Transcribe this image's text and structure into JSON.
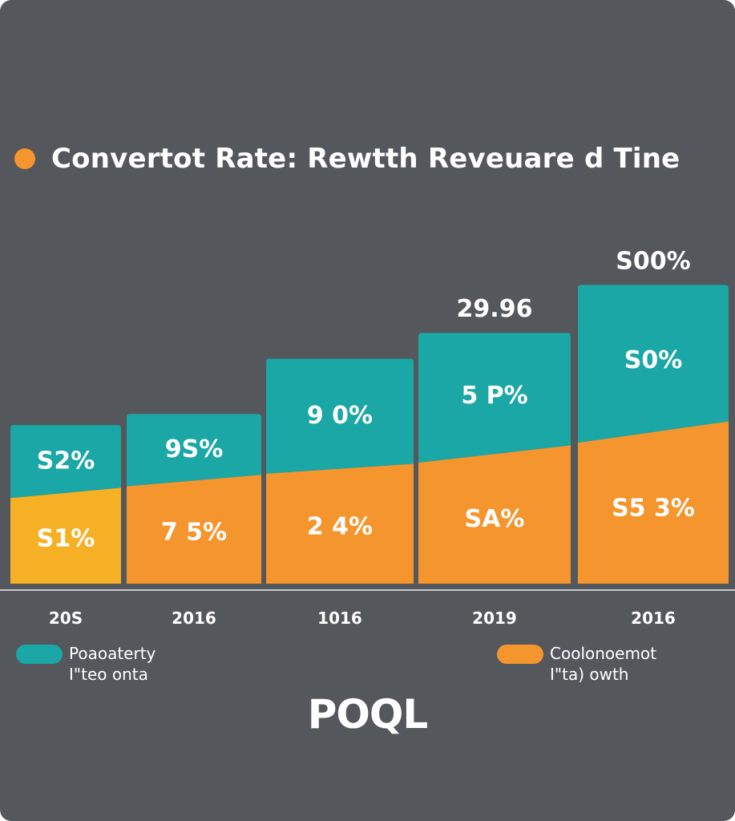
{
  "title": "Convertot Rate: Rewtth Reveuare d Tine",
  "logo": "POQL",
  "colors": {
    "background": "#54575c",
    "teal": "#1aa7a5",
    "orange": "#f5952e",
    "yellow": "#f6b025",
    "text": "#ffffff",
    "baseline": "#c8cacd"
  },
  "legend": [
    {
      "label": "Poaoaterty\nI\"teo onta",
      "color": "#1aa7a5"
    },
    {
      "label": "Coolonoemot\nI\"ta) owth",
      "color": "#f5952e"
    }
  ],
  "chart_data": {
    "type": "bar",
    "stacked": true,
    "categories": [
      "20S",
      "2016",
      "1016",
      "2019",
      "2016"
    ],
    "series": [
      {
        "name": "Poaoaterty I\"teo onta",
        "color": "#1aa7a5",
        "values": [
          19,
          18,
          30,
          34,
          40
        ],
        "labels": [
          "S2%",
          "9S%",
          "9 0%",
          "5 P%",
          "S0%"
        ]
      },
      {
        "name": "Coolonoemot I\"ta) owth",
        "color": "#f5952e",
        "values": [
          24,
          28,
          31,
          34,
          41
        ],
        "labels": [
          "S1%",
          "7 5%",
          "2 4%",
          "SA%",
          "S5 3%"
        ]
      }
    ],
    "top_labels": [
      "",
      "",
      "",
      "29.96",
      "S00%"
    ],
    "ylim": [
      0,
      90
    ],
    "grid": false,
    "legend_position": "bottom"
  }
}
